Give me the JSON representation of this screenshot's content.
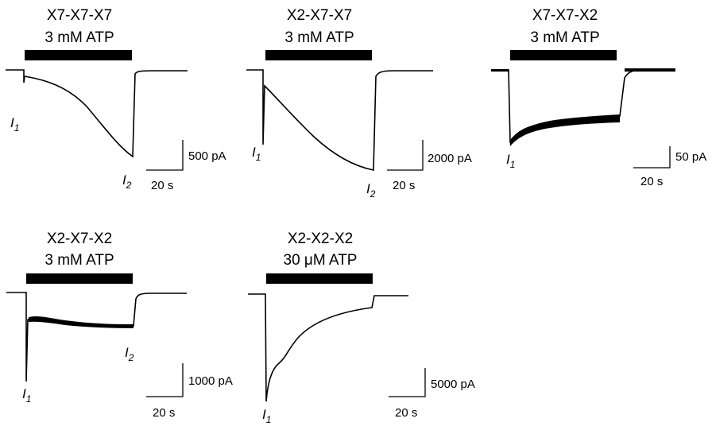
{
  "panels": [
    {
      "id": "p1",
      "construct": "X7-X7-X7",
      "concentration": "3 mM ATP",
      "amplitude_scale": "500 pA",
      "time_scale": "20 s",
      "peak_labels": [
        {
          "letter": "I",
          "subscript": "1"
        },
        {
          "letter": "I",
          "subscript": "2"
        }
      ]
    },
    {
      "id": "p2",
      "construct": "X2-X7-X7",
      "concentration": "3 mM ATP",
      "amplitude_scale": "2000 pA",
      "time_scale": "20 s",
      "peak_labels": [
        {
          "letter": "I",
          "subscript": "1"
        },
        {
          "letter": "I",
          "subscript": "2"
        }
      ]
    },
    {
      "id": "p3",
      "construct": "X7-X7-X2",
      "concentration": "3 mM ATP",
      "amplitude_scale": "50 pA",
      "time_scale": "20 s",
      "peak_labels": [
        {
          "letter": "I",
          "subscript": "1"
        }
      ]
    },
    {
      "id": "p4",
      "construct": "X2-X7-X2",
      "concentration": "3 mM ATP",
      "amplitude_scale": "1000 pA",
      "time_scale": "20 s",
      "peak_labels": [
        {
          "letter": "I",
          "subscript": "1"
        },
        {
          "letter": "I",
          "subscript": "2"
        }
      ]
    },
    {
      "id": "p5",
      "construct": "X2-X2-X2",
      "concentration": "30 μM ATP",
      "amplitude_scale": "5000 pA",
      "time_scale": "20 s",
      "peak_labels": [
        {
          "letter": "I",
          "subscript": "1"
        }
      ]
    }
  ],
  "colors": {
    "trace": "#000000",
    "application_bar": "#000000",
    "background": "#ffffff"
  }
}
